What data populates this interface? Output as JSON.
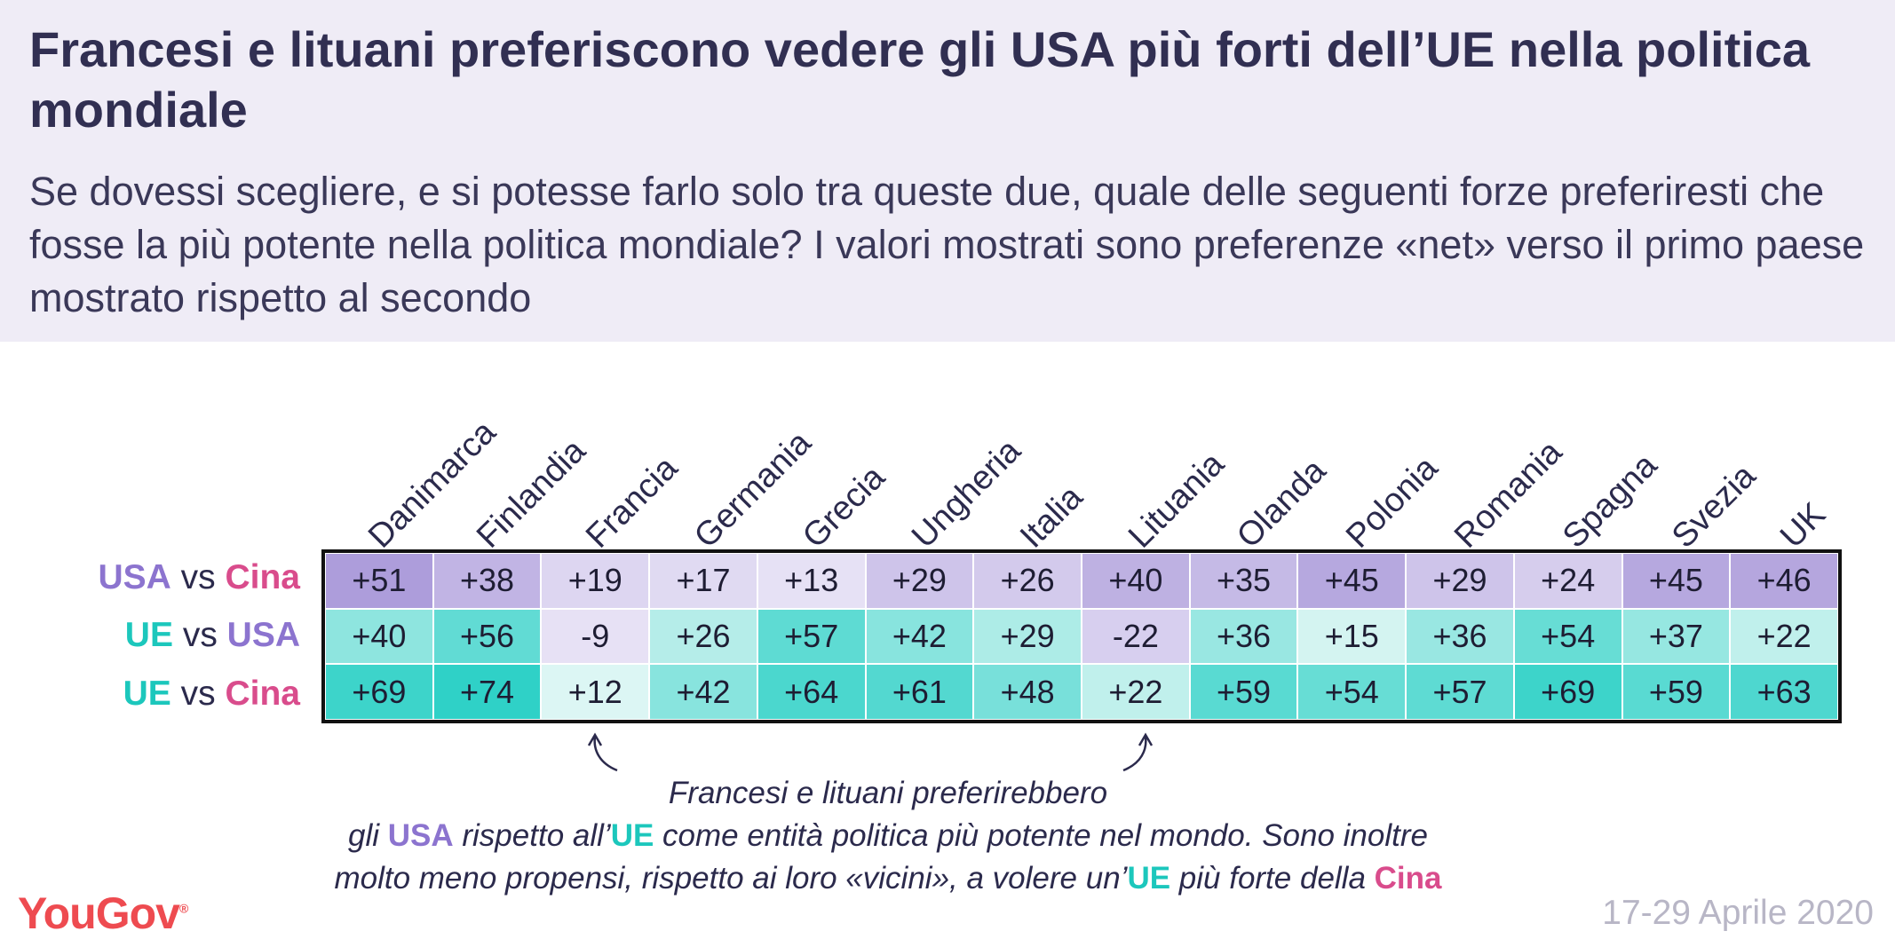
{
  "header": {
    "title": "Francesi e lituani preferiscono vedere gli USA più forti dell’UE nella politica mondiale",
    "subtitle": "Se dovessi scegliere, e si potesse farlo solo tra queste due, quale delle seguenti forze preferiresti che fosse la più potente nella politica mondiale? I valori mostrati sono preferenze «net» verso il primo paese mostrato rispetto al secondo"
  },
  "colors": {
    "usa": "#8c74cf",
    "ue": "#1cc7bc",
    "cina": "#d94c8c",
    "header_bg": "#efecf6",
    "brand": "#ee4b50"
  },
  "chart_data": {
    "type": "heatmap",
    "columns": [
      "Danimarca",
      "Finlandia",
      "Francia",
      "Germania",
      "Grecia",
      "Ungheria",
      "Italia",
      "Lituania",
      "Olanda",
      "Polonia",
      "Romania",
      "Spagna",
      "Svezia",
      "UK"
    ],
    "rows": [
      {
        "first": "USA",
        "vs": "vs",
        "second": "Cina",
        "values": [
          51,
          38,
          19,
          17,
          13,
          29,
          26,
          40,
          35,
          45,
          29,
          24,
          45,
          46
        ]
      },
      {
        "first": "UE",
        "vs": "vs",
        "second": "USA",
        "values": [
          40,
          56,
          -9,
          26,
          57,
          42,
          29,
          -22,
          36,
          15,
          36,
          54,
          37,
          22
        ]
      },
      {
        "first": "UE",
        "vs": "vs",
        "second": "Cina",
        "values": [
          69,
          74,
          12,
          42,
          64,
          61,
          48,
          22,
          59,
          54,
          57,
          69,
          59,
          63
        ]
      }
    ]
  },
  "annotation": {
    "line1": "Francesi e lituani preferirebbero",
    "line2_a": "gli ",
    "line2_usa": "USA",
    "line2_b": " rispetto all’",
    "line2_ue": "UE",
    "line2_c": " come entità politica più potente nel mondo. Sono inoltre",
    "line3_a": "molto meno propensi, rispetto ai loro «vicini», a volere un’",
    "line3_ue": "UE",
    "line3_b": " più forte della ",
    "line3_cina": "Cina"
  },
  "footer": {
    "logo": "YouGov",
    "logo_mark": "®",
    "date": "17-29 Aprile 2020"
  }
}
